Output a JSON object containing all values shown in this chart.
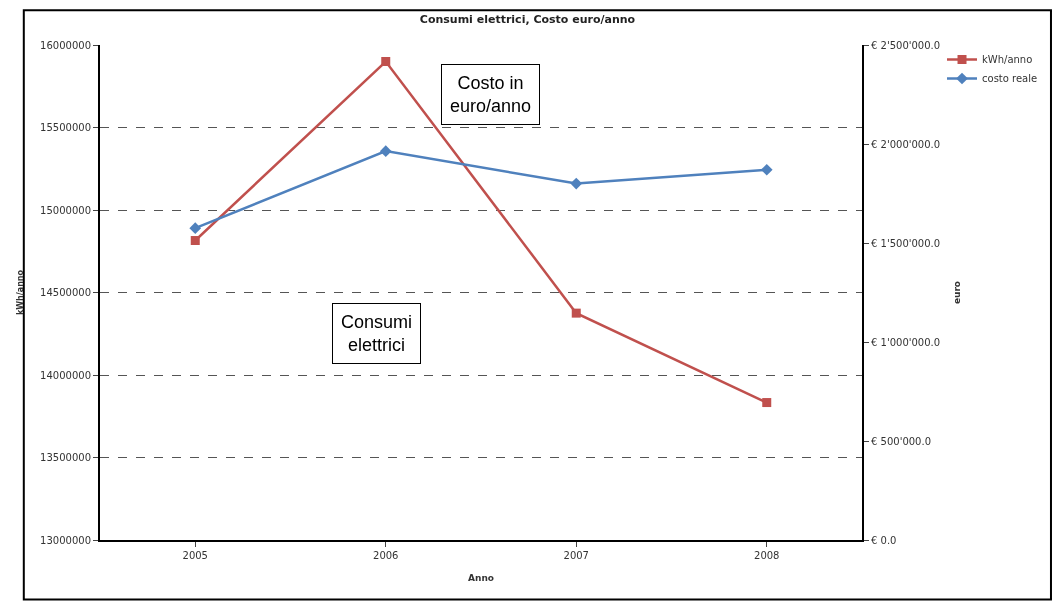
{
  "chart_data": {
    "type": "line",
    "title": "Consumi elettrici, Costo euro/anno",
    "xlabel": "Anno",
    "ylabel": "kWh/anno",
    "y2label": "euro",
    "categories": [
      "2005",
      "2006",
      "2007",
      "2008"
    ],
    "series": [
      {
        "name": "kWh/anno",
        "color": "#c0504d",
        "marker": "square",
        "values": [
          14815000,
          15900000,
          14375000,
          13833000
        ]
      },
      {
        "name": "costo reale",
        "color": "#4f81bd",
        "marker": "diamond",
        "axis": "y2",
        "values": [
          1575000,
          1964000,
          1800000,
          1870000
        ]
      }
    ],
    "ylim": [
      13000000,
      16000000
    ],
    "yticks": [
      13000000,
      13500000,
      14000000,
      14500000,
      15000000,
      15500000,
      16000000
    ],
    "y2lim": [
      0,
      2500000
    ],
    "y2ticks": [
      {
        "value": 0,
        "label": "€ 0.0"
      },
      {
        "value": 500000,
        "label": "€ 500'000.0"
      },
      {
        "value": 1000000,
        "label": "€ 1'000'000.0"
      },
      {
        "value": 1500000,
        "label": "€ 1'500'000.0"
      },
      {
        "value": 2000000,
        "label": "€ 2'000'000.0"
      },
      {
        "value": 2500000,
        "label": "€ 2'500'000.0"
      }
    ],
    "annotations": [
      "Costo in\neuro/anno",
      "Consumi\nelettrici"
    ],
    "grid": "y",
    "legend": "top right",
    "line_style": "solid"
  }
}
